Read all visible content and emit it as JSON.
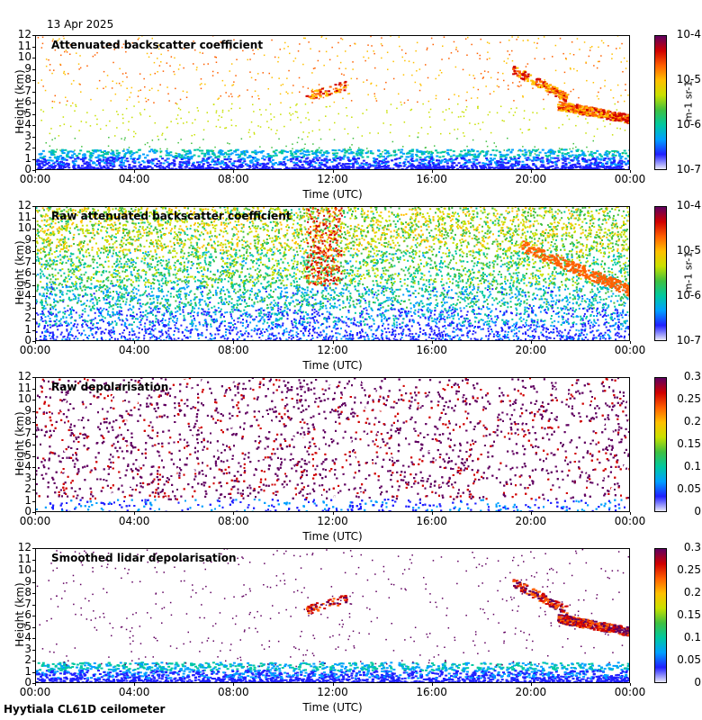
{
  "header": {
    "date": "13 Apr 2025"
  },
  "footer": {
    "site": "Hyytiala CL61D ceilometer"
  },
  "colors": {
    "colormap": [
      "#e8e8f8",
      "#2020ff",
      "#00a0ff",
      "#00c8a0",
      "#40c040",
      "#c8e000",
      "#ffc000",
      "#ff6000",
      "#d00000",
      "#600060"
    ]
  },
  "chart_data": [
    {
      "type": "heatmap",
      "title": "Attenuated backscatter coefficient",
      "xlabel": "Time (UTC)",
      "ylabel": "Height (km)",
      "x_ticks": [
        "00:00",
        "04:00",
        "08:00",
        "12:00",
        "16:00",
        "20:00",
        "00:00"
      ],
      "y_ticks": [
        "0",
        "1",
        "2",
        "3",
        "4",
        "5",
        "6",
        "7",
        "8",
        "9",
        "10",
        "11",
        "12"
      ],
      "ylim": [
        0,
        12
      ],
      "colorbar": {
        "scale": "log",
        "ticks": [
          "10-7",
          "10-6",
          "10-5",
          "10-4"
        ],
        "unit": "m-1 sr-1"
      }
    },
    {
      "type": "heatmap",
      "title": "Raw attenuated backscatter coefficient",
      "xlabel": "Time (UTC)",
      "ylabel": "Height (km)",
      "x_ticks": [
        "00:00",
        "04:00",
        "08:00",
        "12:00",
        "16:00",
        "20:00",
        "00:00"
      ],
      "y_ticks": [
        "0",
        "1",
        "2",
        "3",
        "4",
        "5",
        "6",
        "7",
        "8",
        "9",
        "10",
        "11",
        "12"
      ],
      "ylim": [
        0,
        12
      ],
      "colorbar": {
        "scale": "log",
        "ticks": [
          "10-7",
          "10-6",
          "10-5",
          "10-4"
        ],
        "unit": "m-1 sr-1"
      }
    },
    {
      "type": "heatmap",
      "title": "Raw depolarisation",
      "xlabel": "Time (UTC)",
      "ylabel": "Height (km)",
      "x_ticks": [
        "00:00",
        "04:00",
        "08:00",
        "12:00",
        "16:00",
        "20:00",
        "00:00"
      ],
      "y_ticks": [
        "0",
        "1",
        "2",
        "3",
        "4",
        "5",
        "6",
        "7",
        "8",
        "9",
        "10",
        "11",
        "12"
      ],
      "ylim": [
        0,
        12
      ],
      "colorbar": {
        "scale": "linear",
        "ticks": [
          "0",
          "0.05",
          "0.1",
          "0.15",
          "0.2",
          "0.25",
          "0.3"
        ],
        "unit": ""
      }
    },
    {
      "type": "heatmap",
      "title": "Smoothed lidar depolarisation",
      "xlabel": "Time (UTC)",
      "ylabel": "Height (km)",
      "x_ticks": [
        "00:00",
        "04:00",
        "08:00",
        "12:00",
        "16:00",
        "20:00",
        "00:00"
      ],
      "y_ticks": [
        "0",
        "1",
        "2",
        "3",
        "4",
        "5",
        "6",
        "7",
        "8",
        "9",
        "10",
        "11",
        "12"
      ],
      "ylim": [
        0,
        12
      ],
      "colorbar": {
        "scale": "linear",
        "ticks": [
          "0",
          "0.05",
          "0.1",
          "0.15",
          "0.2",
          "0.25",
          "0.3"
        ],
        "unit": ""
      }
    }
  ]
}
